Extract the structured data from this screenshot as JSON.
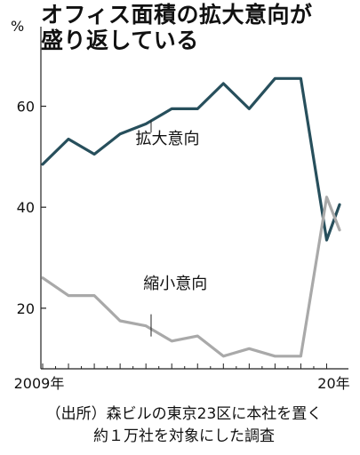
{
  "title": {
    "line1": "オフィス面積の拡大意向が",
    "line2": "盛り返している"
  },
  "unit": "%",
  "source": {
    "line1": "（出所）森ビルの東京23区に本社を置く",
    "line2": "約１万社を対象にした調査"
  },
  "chart_data": {
    "type": "line",
    "title": "オフィス面積の拡大意向が盛り返している",
    "ylabel": "%",
    "ylim": [
      8,
      74
    ],
    "yticks": [
      20,
      40,
      60
    ],
    "x": [
      2009,
      2010,
      2011,
      2012,
      2013,
      2014,
      2015,
      2016,
      2017,
      2018,
      2019,
      2020,
      2020.5
    ],
    "xtick_labels": [
      {
        "x": 2009,
        "label": "2009年"
      },
      {
        "x": 2020,
        "label": "20年"
      }
    ],
    "grid": false,
    "series": [
      {
        "name": "拡大意向",
        "color": "#274f5c",
        "values": [
          48.5,
          53.5,
          50.5,
          54.5,
          56.5,
          59.5,
          59.5,
          64.5,
          59.5,
          65.5,
          65.5,
          33.5,
          40.5
        ]
      },
      {
        "name": "縮小意向",
        "color": "#a9a9a9",
        "values": [
          26,
          22.5,
          22.5,
          17.5,
          16.5,
          13.5,
          14.5,
          10.5,
          12,
          10.5,
          10.5,
          42,
          35.5
        ]
      }
    ]
  }
}
